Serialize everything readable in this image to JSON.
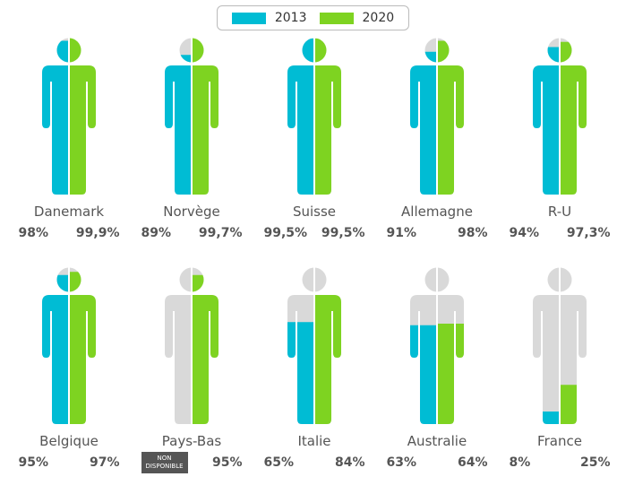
{
  "chart_data": {
    "type": "pictogram",
    "legend": [
      {
        "name": "2013",
        "color": "#00bcd4"
      },
      {
        "name": "2020",
        "color": "#7ed321"
      }
    ],
    "empty_color": "#d9d9d9",
    "not_available_label": "NON DISPONIBLE",
    "countries": [
      {
        "name": "Danemark",
        "v2013": 98,
        "v2020": 99.9,
        "l2013": "98%",
        "l2020": "99,9%"
      },
      {
        "name": "Norvège",
        "v2013": 89,
        "v2020": 99.7,
        "l2013": "89%",
        "l2020": "99,7%"
      },
      {
        "name": "Suisse",
        "v2013": 99.5,
        "v2020": 99.5,
        "l2013": "99,5%",
        "l2020": "99,5%"
      },
      {
        "name": "Allemagne",
        "v2013": 91,
        "v2020": 98,
        "l2013": "91%",
        "l2020": "98%"
      },
      {
        "name": "R-U",
        "v2013": 94,
        "v2020": 97.3,
        "l2013": "94%",
        "l2020": "97,3%"
      },
      {
        "name": "Belgique",
        "v2013": 95,
        "v2020": 97,
        "l2013": "95%",
        "l2020": "97%"
      },
      {
        "name": "Pays-Bas",
        "v2013": null,
        "v2020": 95,
        "l2013": null,
        "l2020": "95%"
      },
      {
        "name": "Italie",
        "v2013": 65,
        "v2020": 84,
        "l2013": "65%",
        "l2020": "84%"
      },
      {
        "name": "Australie",
        "v2013": 63,
        "v2020": 64,
        "l2013": "63%",
        "l2020": "64%"
      },
      {
        "name": "France",
        "v2013": 8,
        "v2020": 25,
        "l2013": "8%",
        "l2020": "25%"
      }
    ]
  }
}
